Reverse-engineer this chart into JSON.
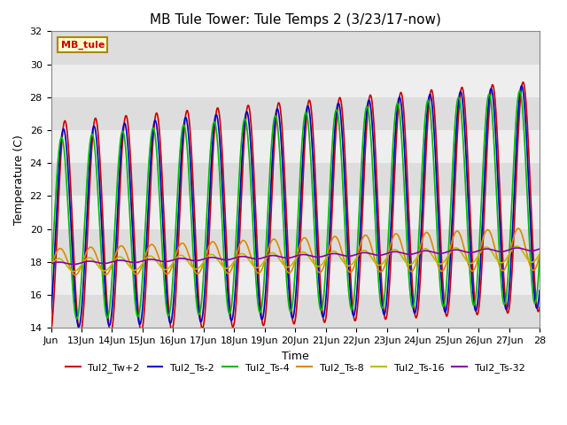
{
  "title": "MB Tule Tower: Tule Temps 2 (3/23/17-now)",
  "xlabel": "Time",
  "ylabel": "Temperature (C)",
  "ylim": [
    14,
    32
  ],
  "yticks": [
    14,
    16,
    18,
    20,
    22,
    24,
    26,
    28,
    30,
    32
  ],
  "xtick_labels": [
    "Jun",
    "13Jun",
    "14Jun",
    "15Jun",
    "16Jun",
    "17Jun",
    "18Jun",
    "19Jun",
    "20Jun",
    "21Jun",
    "22Jun",
    "23Jun",
    "24Jun",
    "25Jun",
    "26Jun",
    "27Jun",
    "28"
  ],
  "xtick_positions": [
    0,
    1,
    2,
    3,
    4,
    5,
    6,
    7,
    8,
    9,
    10,
    11,
    12,
    13,
    14,
    15,
    16
  ],
  "legend_entries": [
    "Tul2_Tw+2",
    "Tul2_Ts-2",
    "Tul2_Ts-4",
    "Tul2_Ts-8",
    "Tul2_Ts-16",
    "Tul2_Ts-32"
  ],
  "line_colors": [
    "#cc0000",
    "#0000cc",
    "#00bb00",
    "#dd8800",
    "#bbbb00",
    "#8800aa"
  ],
  "watermark_text": "MB_tule",
  "watermark_color": "#cc0000",
  "watermark_bg": "#ffffcc",
  "watermark_border": "#aa8800",
  "band_color_light": "#eeeeee",
  "band_color_dark": "#dddddd",
  "title_fontsize": 11,
  "axis_label_fontsize": 9,
  "tick_fontsize": 8
}
